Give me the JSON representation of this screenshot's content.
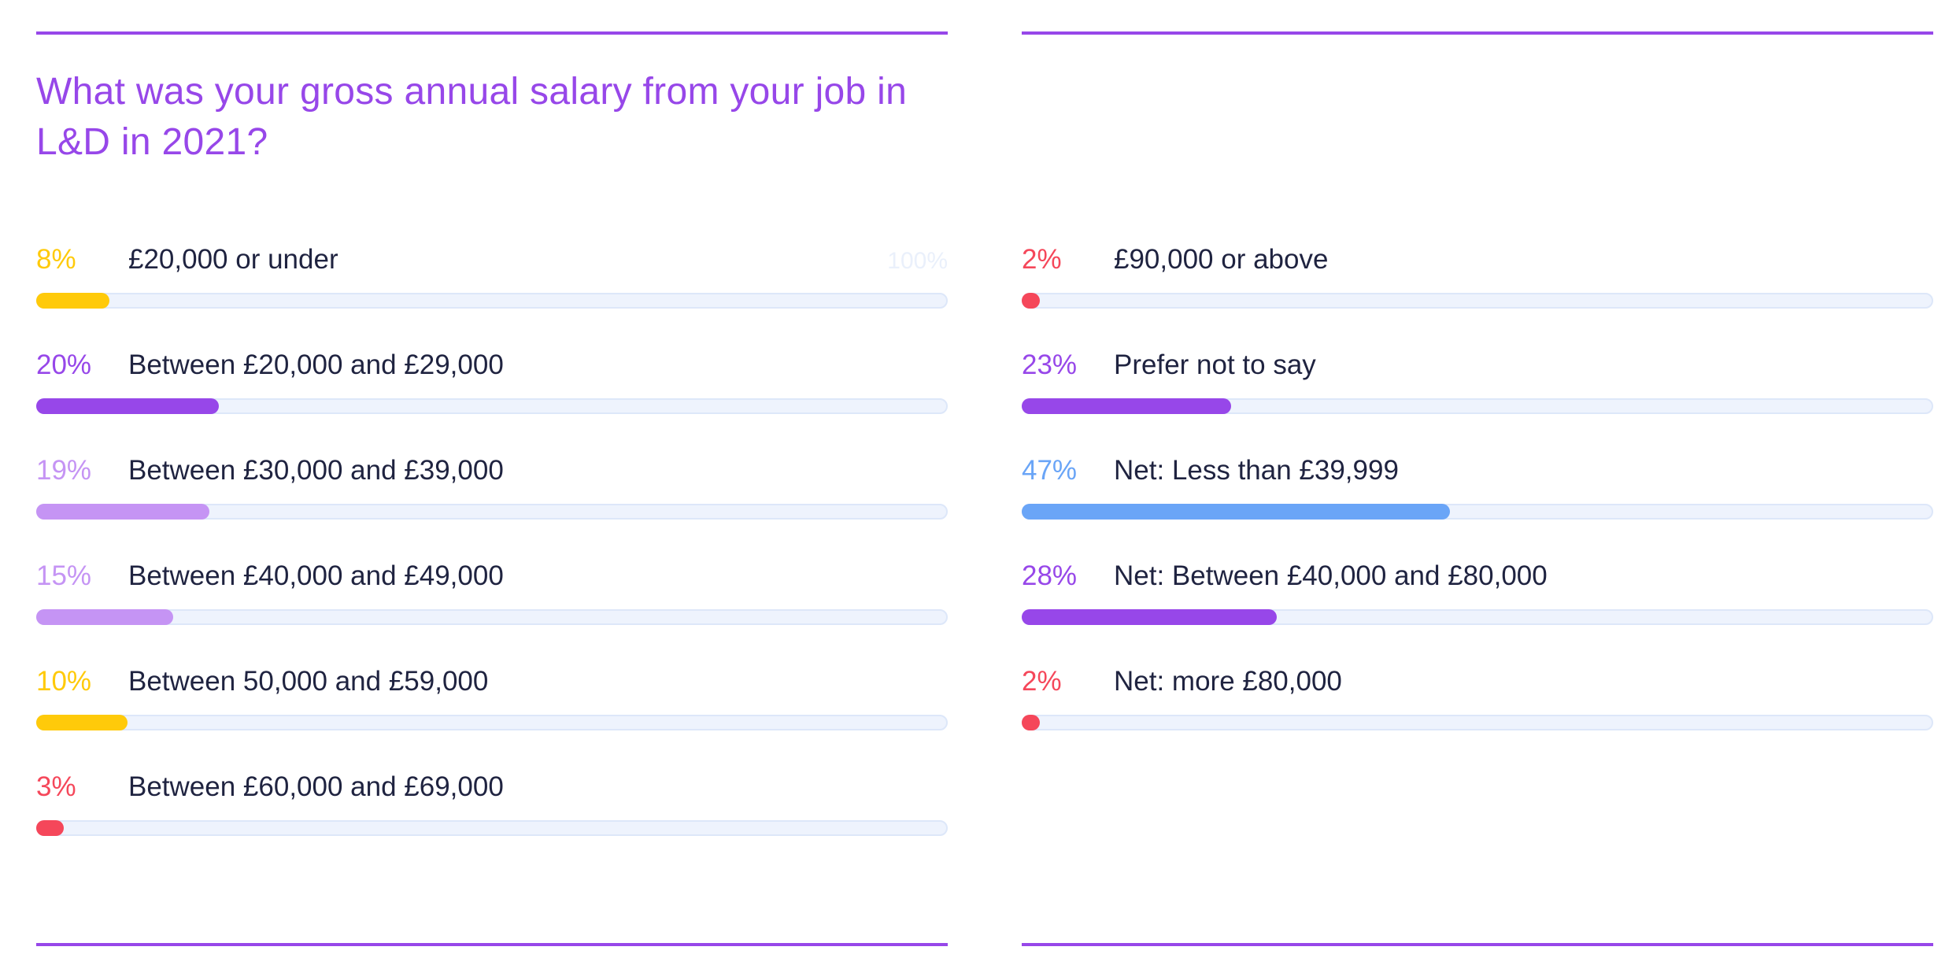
{
  "colors": {
    "accent": "#9747e9",
    "yellow": "#ffca0a",
    "purple": "#9747e9",
    "lilac": "#c594f4",
    "red": "#f5475a",
    "blue": "#6aa5f7"
  },
  "chart_data": [
    {
      "type": "bar",
      "orientation": "horizontal",
      "title": "What was your gross annual salary from your job in L&D in 2021?",
      "axis_max_label": "100%",
      "xlim": [
        0,
        100
      ],
      "categories": [
        "£20,000 or under",
        "Between £20,000 and £29,000",
        "Between £30,000 and £39,000",
        "Between £40,000 and £49,000",
        "Between 50,000 and £59,000",
        "Between £60,000 and £69,000"
      ],
      "values": [
        8,
        20,
        19,
        15,
        10,
        3
      ],
      "value_labels": [
        "8%",
        "20%",
        "19%",
        "15%",
        "10%",
        "3%"
      ],
      "bar_colors": [
        "#ffca0a",
        "#9747e9",
        "#c594f4",
        "#c594f4",
        "#ffca0a",
        "#f5475a"
      ]
    },
    {
      "type": "bar",
      "orientation": "horizontal",
      "title": "",
      "xlim": [
        0,
        100
      ],
      "categories": [
        "£90,000 or above",
        "Prefer not to say",
        "Net: Less than £39,999",
        "Net: Between £40,000 and £80,000",
        "Net: more £80,000"
      ],
      "values": [
        2,
        23,
        47,
        28,
        2
      ],
      "value_labels": [
        "2%",
        "23%",
        "47%",
        "28%",
        "2%"
      ],
      "bar_colors": [
        "#f5475a",
        "#9747e9",
        "#6aa5f7",
        "#9747e9",
        "#f5475a"
      ]
    }
  ]
}
